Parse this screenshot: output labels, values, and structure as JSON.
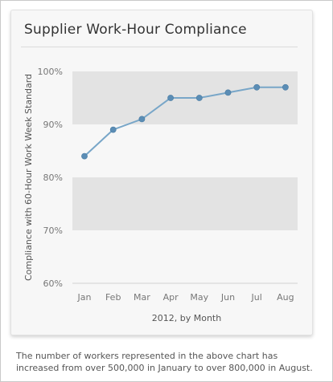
{
  "title": "Supplier Work-Hour Compliance",
  "caption": "The number of workers represented in the above chart has increased from over 500,000 in January to over 800,000 in August.",
  "colors": {
    "line": "#78a6c8",
    "marker": "#5b8db5",
    "band": "#e3e3e3",
    "axis_text": "#777777"
  },
  "chart_data": {
    "type": "line",
    "categories": [
      "Jan",
      "Feb",
      "Mar",
      "Apr",
      "May",
      "Jun",
      "Jul",
      "Aug"
    ],
    "values": [
      84,
      89,
      91,
      95,
      95,
      96,
      97,
      97
    ],
    "yticks": [
      "60%",
      "70%",
      "80%",
      "90%",
      "100%"
    ],
    "ylim": [
      60,
      100
    ],
    "xlabel": "2012, by Month",
    "ylabel": "Compliance with 60-Hour Work Week Standard",
    "grid": "alternating horizontal bands"
  }
}
